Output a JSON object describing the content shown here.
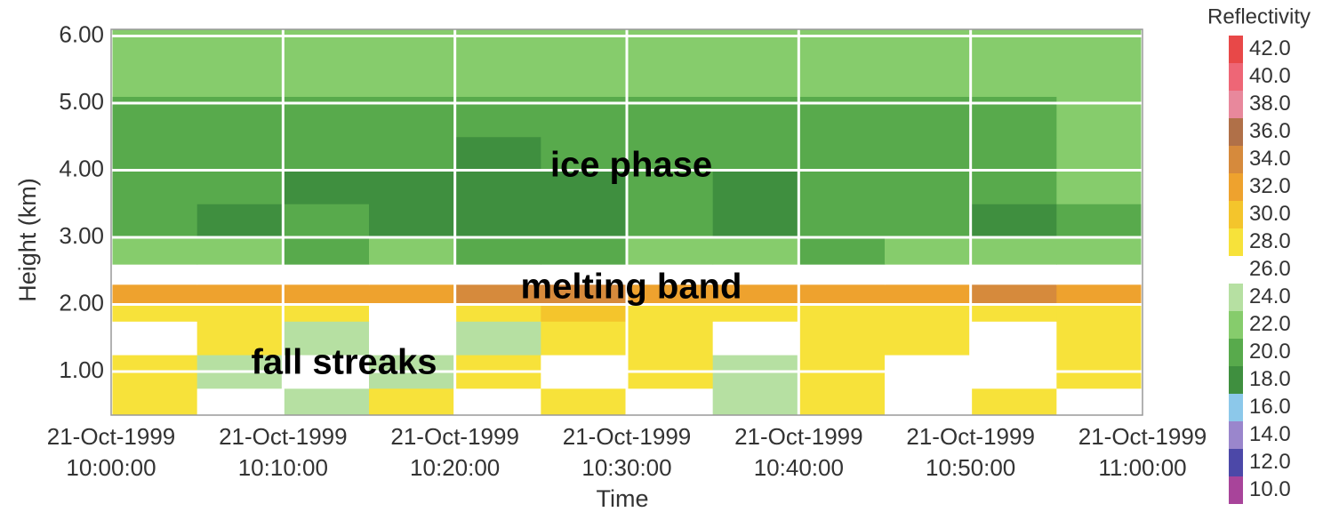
{
  "chart_data": {
    "type": "heatmap",
    "xlabel": "Time",
    "ylabel": "Height (km)",
    "xlim": [
      "21-Oct-1999 10:00:00",
      "21-Oct-1999 11:00:00"
    ],
    "xticks": [
      "21-Oct-1999 10:00:00",
      "21-Oct-1999 10:10:00",
      "21-Oct-1999 10:20:00",
      "21-Oct-1999 10:30:00",
      "21-Oct-1999 10:40:00",
      "21-Oct-1999 10:50:00",
      "21-Oct-1999 11:00:00"
    ],
    "ylim": [
      0.35,
      6.1
    ],
    "yticks": [
      {
        "value": 1,
        "label": "1.00"
      },
      {
        "value": 2,
        "label": "2.00"
      },
      {
        "value": 3,
        "label": "3.00"
      },
      {
        "value": 4,
        "label": "4.00"
      },
      {
        "value": 5,
        "label": "5.00"
      },
      {
        "value": 6,
        "label": "6.00"
      }
    ],
    "grid": true,
    "x_edges": [
      "21-Oct-1999 10:00:00",
      "21-Oct-1999 10:05:00",
      "21-Oct-1999 10:10:00",
      "21-Oct-1999 10:15:00",
      "21-Oct-1999 10:20:00",
      "21-Oct-1999 10:25:00",
      "21-Oct-1999 10:30:00",
      "21-Oct-1999 10:35:00",
      "21-Oct-1999 10:40:00",
      "21-Oct-1999 10:45:00",
      "21-Oct-1999 10:50:00",
      "21-Oct-1999 10:55:00",
      "21-Oct-1999 11:00:00"
    ],
    "y_edges": [
      0.35,
      0.75,
      1.25,
      1.75,
      2.0,
      2.3,
      2.6,
      3.0,
      3.5,
      4.0,
      4.5,
      5.1,
      6.1
    ],
    "values": [
      [
        28,
        26,
        24,
        28,
        26,
        29,
        26,
        24,
        28,
        26,
        28,
        26
      ],
      [
        28,
        24,
        26,
        24,
        28,
        26,
        29,
        24,
        28,
        26,
        26,
        28
      ],
      [
        26,
        28,
        24,
        26,
        24,
        28,
        28,
        26,
        28,
        28,
        26,
        28
      ],
      [
        29,
        28,
        28,
        26,
        28,
        30,
        29,
        28,
        28,
        29,
        28,
        29
      ],
      [
        33,
        32,
        33,
        32,
        34,
        35,
        32,
        33,
        32,
        33,
        34,
        33
      ],
      [
        26,
        26,
        26,
        26,
        26,
        26,
        26,
        26,
        26,
        26,
        26,
        26
      ],
      [
        22,
        22,
        21,
        22,
        21,
        21,
        22,
        22,
        21,
        22,
        22,
        22
      ],
      [
        20,
        19,
        20,
        19,
        19,
        19,
        20,
        19,
        20,
        20,
        19,
        20
      ],
      [
        20,
        20,
        19,
        19,
        19,
        19,
        20,
        19,
        20,
        20,
        20,
        22
      ],
      [
        20,
        20,
        20,
        20,
        19,
        20,
        20,
        20,
        20,
        20,
        21,
        22
      ],
      [
        20,
        20,
        20,
        20,
        20,
        20,
        20,
        20,
        20,
        20,
        21,
        22
      ],
      [
        22,
        22,
        22,
        22,
        22,
        22,
        22,
        22,
        22,
        22,
        22,
        22
      ]
    ],
    "colorbar": {
      "title": "Reflectivity",
      "levels": [
        {
          "value": 10,
          "label": "10.0"
        },
        {
          "value": 12,
          "label": "12.0"
        },
        {
          "value": 14,
          "label": "14.0"
        },
        {
          "value": 16,
          "label": "16.0"
        },
        {
          "value": 18,
          "label": "18.0"
        },
        {
          "value": 20,
          "label": "20.0"
        },
        {
          "value": 22,
          "label": "22.0"
        },
        {
          "value": 24,
          "label": "24.0"
        },
        {
          "value": 26,
          "label": "26.0"
        },
        {
          "value": 28,
          "label": "28.0"
        },
        {
          "value": 30,
          "label": "30.0"
        },
        {
          "value": 32,
          "label": "32.0"
        },
        {
          "value": 34,
          "label": "34.0"
        },
        {
          "value": 36,
          "label": "36.0"
        },
        {
          "value": 38,
          "label": "38.0"
        },
        {
          "value": 40,
          "label": "40.0"
        },
        {
          "value": 42,
          "label": "42.0"
        }
      ],
      "colors": [
        "#a8449a",
        "#4c48a8",
        "#9a86cc",
        "#8cc8ea",
        "#3f8f3f",
        "#58aa4c",
        "#86cc6c",
        "#b6e0a2",
        "#ffffff",
        "#f7e23a",
        "#f4c52c",
        "#eea22e",
        "#d68a3c",
        "#b07048",
        "#e8889c",
        "#ee6676",
        "#e84848"
      ]
    },
    "annotations": [
      "ice phase",
      "melting band",
      "fall streaks"
    ]
  }
}
